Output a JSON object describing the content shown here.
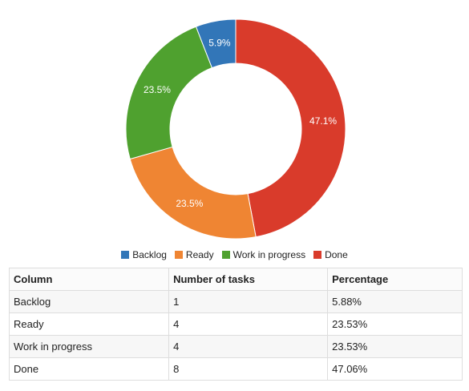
{
  "chart_data": {
    "type": "pie",
    "variant": "donut",
    "title": "",
    "categories": [
      "Backlog",
      "Ready",
      "Work in progress",
      "Done"
    ],
    "values": [
      1,
      4,
      4,
      8
    ],
    "slice_labels": [
      "5.9%",
      "23.5%",
      "23.5%",
      "47.1%"
    ],
    "colors": [
      "#3276b8",
      "#ef8533",
      "#4fa12f",
      "#d93b2b"
    ],
    "legend_position": "bottom",
    "legend": [
      {
        "name": "Backlog",
        "color": "#3276b8"
      },
      {
        "name": "Ready",
        "color": "#ef8533"
      },
      {
        "name": "Work in progress",
        "color": "#4fa12f"
      },
      {
        "name": "Done",
        "color": "#d93b2b"
      }
    ]
  },
  "table": {
    "headers": [
      "Column",
      "Number of tasks",
      "Percentage"
    ],
    "rows": [
      [
        "Backlog",
        "1",
        "5.88%"
      ],
      [
        "Ready",
        "4",
        "23.53%"
      ],
      [
        "Work in progress",
        "4",
        "23.53%"
      ],
      [
        "Done",
        "8",
        "47.06%"
      ]
    ]
  }
}
